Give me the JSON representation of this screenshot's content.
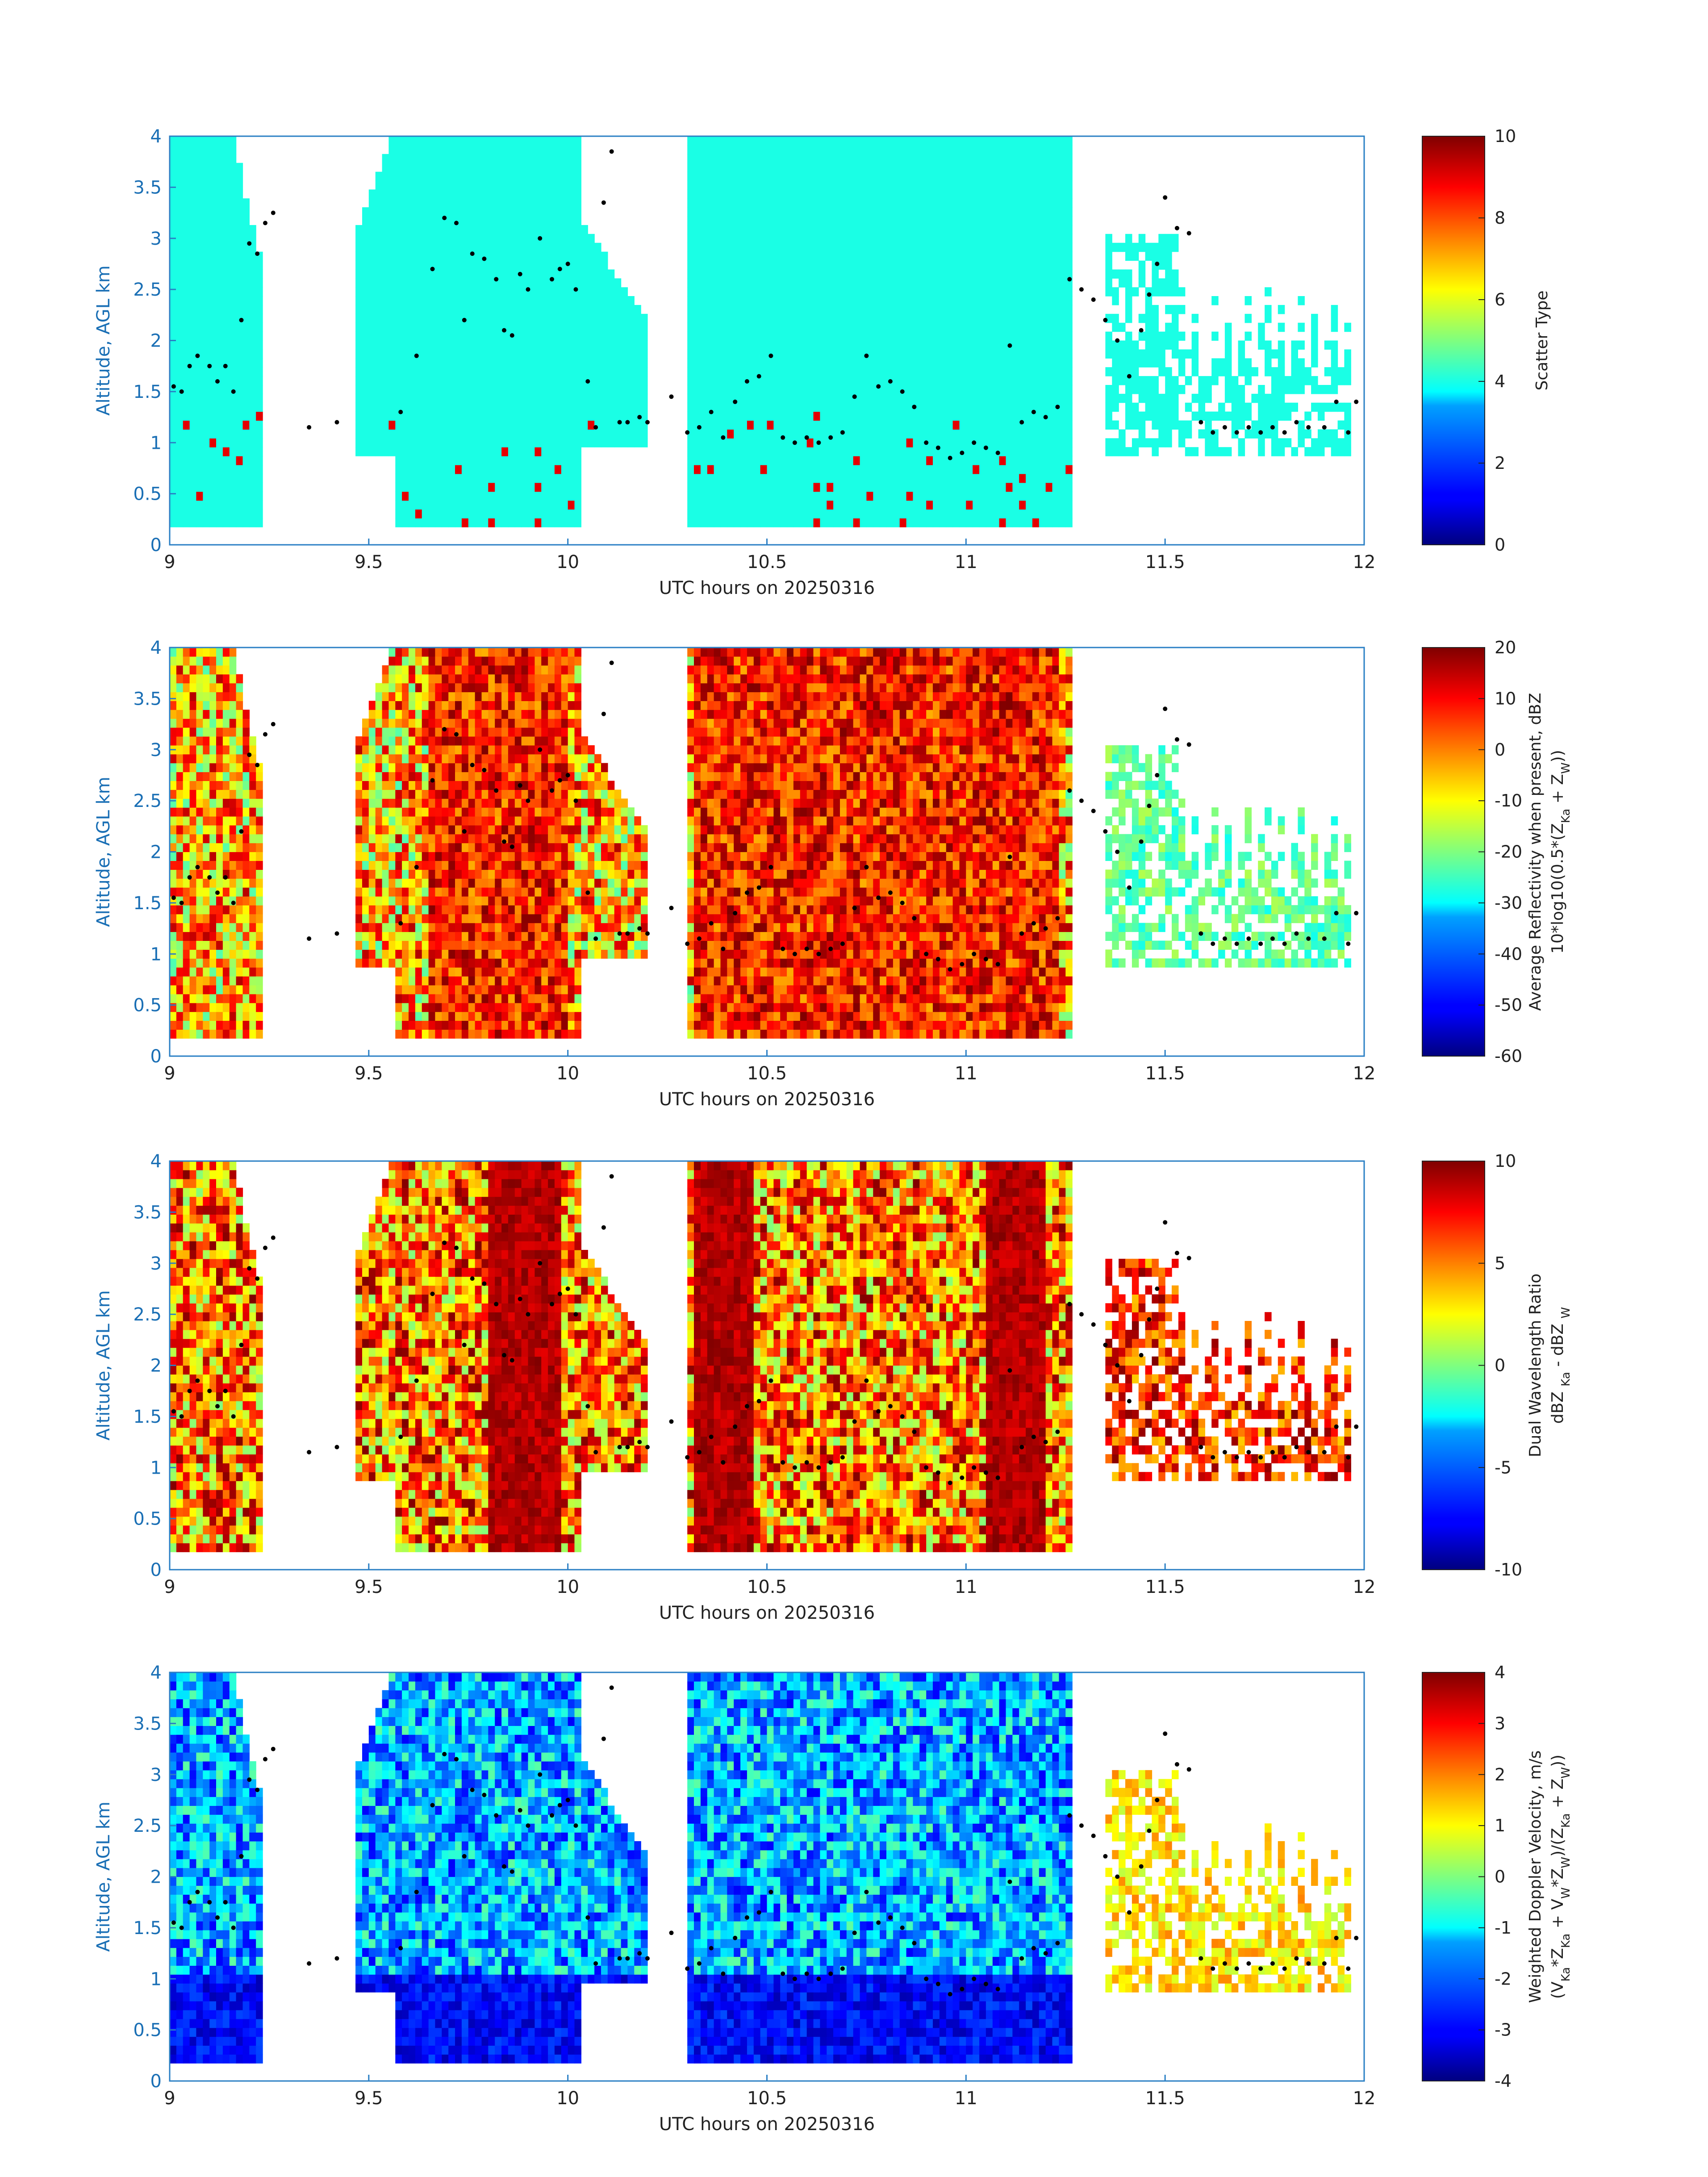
{
  "figure": {
    "panels": [
      {
        "colorbar_label_1": "Scatter Type",
        "colorbar_label_2": ""
      },
      {
        "colorbar_label_1": "Average Reflectivity when present, dBZ",
        "colorbar_label_2": "10*log10(0.5*(Z_Ka + Z_W))"
      },
      {
        "colorbar_label_1": "Dual Wavelength Ratio",
        "colorbar_label_2": "dBZ_Ka - dBZ_W"
      },
      {
        "colorbar_label_1": "Weighted Doppler Velocity, m/s",
        "colorbar_label_2": "(V_Ka*Z_Ka + V_W*Z_W)/(Z_Ka + Z_W)"
      }
    ]
  },
  "chart_data": [
    {
      "type": "heatmap",
      "title": "",
      "xlabel": "UTC hours on 20250316",
      "ylabel": "Altitude, AGL km",
      "xlim": [
        9,
        12
      ],
      "ylim": [
        0,
        4
      ],
      "xticks": [
        "9",
        "9.5",
        "10",
        "10.5",
        "11",
        "11.5",
        "12"
      ],
      "yticks": [
        "0",
        "0.5",
        "1",
        "1.5",
        "2",
        "2.5",
        "3",
        "3.5",
        "4"
      ],
      "colorbar": {
        "label": "Scatter Type",
        "range": [
          0,
          10
        ],
        "ticks": [
          "0",
          "2",
          "4",
          "6",
          "8",
          "10"
        ]
      },
      "description_values": {
        "dominant_value": 4,
        "secondary_value": 9
      }
    },
    {
      "type": "heatmap",
      "title": "",
      "xlabel": "UTC hours on 20250316",
      "ylabel": "Altitude, AGL km",
      "xlim": [
        9,
        12
      ],
      "ylim": [
        0,
        4
      ],
      "xticks": [
        "9",
        "9.5",
        "10",
        "10.5",
        "11",
        "11.5",
        "12"
      ],
      "yticks": [
        "0",
        "0.5",
        "1",
        "1.5",
        "2",
        "2.5",
        "3",
        "3.5",
        "4"
      ],
      "colorbar": {
        "label": "Average Reflectivity when present, dBZ",
        "range": [
          -60,
          20
        ],
        "ticks": [
          "-60",
          "-50",
          "-40",
          "-30",
          "-20",
          "-10",
          "0",
          "10",
          "20"
        ]
      }
    },
    {
      "type": "heatmap",
      "title": "",
      "xlabel": "UTC hours on 20250316",
      "ylabel": "Altitude, AGL km",
      "xlim": [
        9,
        12
      ],
      "ylim": [
        0,
        4
      ],
      "xticks": [
        "9",
        "9.5",
        "10",
        "10.5",
        "11",
        "11.5",
        "12"
      ],
      "yticks": [
        "0",
        "0.5",
        "1",
        "1.5",
        "2",
        "2.5",
        "3",
        "3.5",
        "4"
      ],
      "colorbar": {
        "label": "Dual Wavelength Ratio",
        "range": [
          -10,
          10
        ],
        "ticks": [
          "-10",
          "-5",
          "0",
          "5",
          "10"
        ]
      }
    },
    {
      "type": "heatmap",
      "title": "",
      "xlabel": "UTC hours on 20250316",
      "ylabel": "Altitude, AGL km",
      "xlim": [
        9,
        12
      ],
      "ylim": [
        0,
        4
      ],
      "xticks": [
        "9",
        "9.5",
        "10",
        "10.5",
        "11",
        "11.5",
        "12"
      ],
      "yticks": [
        "0",
        "0.5",
        "1",
        "1.5",
        "2",
        "2.5",
        "3",
        "3.5",
        "4"
      ],
      "colorbar": {
        "label": "Weighted Doppler Velocity, m/s",
        "range": [
          -4,
          4
        ],
        "ticks": [
          "-4",
          "-3",
          "-2",
          "-1",
          "0",
          "1",
          "2",
          "3",
          "4"
        ]
      }
    }
  ],
  "cloud_base_points": [
    [
      9.01,
      1.55
    ],
    [
      9.03,
      1.5
    ],
    [
      9.05,
      1.75
    ],
    [
      9.07,
      1.85
    ],
    [
      9.1,
      1.75
    ],
    [
      9.12,
      1.6
    ],
    [
      9.14,
      1.75
    ],
    [
      9.16,
      1.5
    ],
    [
      9.18,
      2.2
    ],
    [
      9.2,
      2.95
    ],
    [
      9.22,
      2.85
    ],
    [
      9.24,
      3.15
    ],
    [
      9.26,
      3.25
    ],
    [
      9.35,
      1.15
    ],
    [
      9.42,
      1.2
    ],
    [
      9.58,
      1.3
    ],
    [
      9.62,
      1.85
    ],
    [
      9.66,
      2.7
    ],
    [
      9.69,
      3.2
    ],
    [
      9.72,
      3.15
    ],
    [
      9.74,
      2.2
    ],
    [
      9.76,
      2.85
    ],
    [
      9.79,
      2.8
    ],
    [
      9.82,
      2.6
    ],
    [
      9.84,
      2.1
    ],
    [
      9.86,
      2.05
    ],
    [
      9.88,
      2.65
    ],
    [
      9.9,
      2.5
    ],
    [
      9.93,
      3.0
    ],
    [
      9.96,
      2.6
    ],
    [
      9.98,
      2.7
    ],
    [
      10.0,
      2.75
    ],
    [
      10.02,
      2.5
    ],
    [
      10.05,
      1.6
    ],
    [
      10.07,
      1.15
    ],
    [
      10.09,
      3.35
    ],
    [
      10.11,
      3.85
    ],
    [
      10.13,
      1.2
    ],
    [
      10.15,
      1.2
    ],
    [
      10.18,
      1.25
    ],
    [
      10.2,
      1.2
    ],
    [
      10.26,
      1.45
    ],
    [
      10.3,
      1.1
    ],
    [
      10.33,
      1.15
    ],
    [
      10.36,
      1.3
    ],
    [
      10.39,
      1.05
    ],
    [
      10.42,
      1.4
    ],
    [
      10.45,
      1.6
    ],
    [
      10.48,
      1.65
    ],
    [
      10.51,
      1.85
    ],
    [
      10.54,
      1.05
    ],
    [
      10.57,
      1.0
    ],
    [
      10.6,
      1.05
    ],
    [
      10.63,
      1.0
    ],
    [
      10.66,
      1.05
    ],
    [
      10.69,
      1.1
    ],
    [
      10.72,
      1.45
    ],
    [
      10.75,
      1.85
    ],
    [
      10.78,
      1.55
    ],
    [
      10.81,
      1.6
    ],
    [
      10.84,
      1.5
    ],
    [
      10.87,
      1.35
    ],
    [
      10.9,
      1.0
    ],
    [
      10.93,
      0.95
    ],
    [
      10.96,
      0.85
    ],
    [
      10.99,
      0.9
    ],
    [
      11.02,
      1.0
    ],
    [
      11.05,
      0.95
    ],
    [
      11.08,
      0.9
    ],
    [
      11.11,
      1.95
    ],
    [
      11.14,
      1.2
    ],
    [
      11.17,
      1.3
    ],
    [
      11.2,
      1.25
    ],
    [
      11.23,
      1.35
    ],
    [
      11.26,
      2.6
    ],
    [
      11.29,
      2.5
    ],
    [
      11.32,
      2.4
    ],
    [
      11.35,
      2.2
    ],
    [
      11.38,
      2.0
    ],
    [
      11.41,
      1.65
    ],
    [
      11.44,
      2.1
    ],
    [
      11.46,
      2.45
    ],
    [
      11.48,
      2.75
    ],
    [
      11.5,
      3.4
    ],
    [
      11.53,
      3.1
    ],
    [
      11.56,
      3.05
    ],
    [
      11.59,
      1.2
    ],
    [
      11.62,
      1.1
    ],
    [
      11.65,
      1.15
    ],
    [
      11.68,
      1.1
    ],
    [
      11.71,
      1.15
    ],
    [
      11.74,
      1.1
    ],
    [
      11.77,
      1.15
    ],
    [
      11.8,
      1.1
    ],
    [
      11.83,
      1.2
    ],
    [
      11.86,
      1.15
    ],
    [
      11.9,
      1.15
    ],
    [
      11.93,
      1.4
    ],
    [
      11.96,
      1.1
    ],
    [
      11.98,
      1.4
    ]
  ]
}
